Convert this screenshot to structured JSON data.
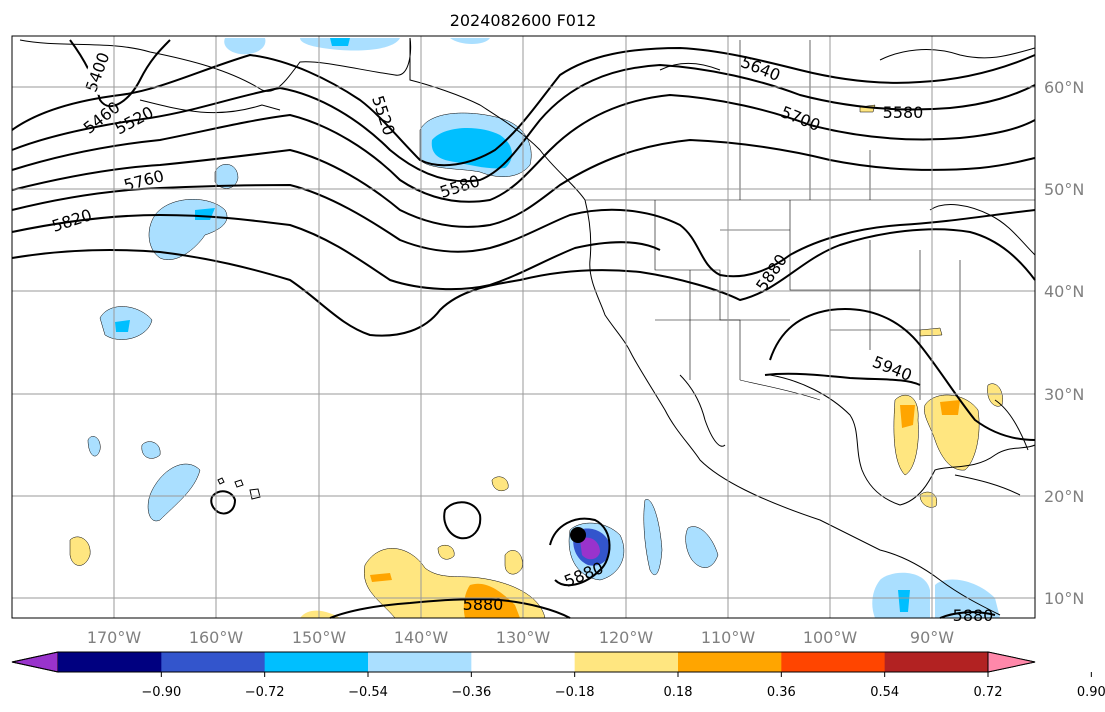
{
  "title": "2024082600 F012",
  "lon_labels": [
    "170°W",
    "160°W",
    "150°W",
    "140°W",
    "130°W",
    "120°W",
    "110°W",
    "100°W",
    "90°W"
  ],
  "lat_labels": [
    "60°N",
    "50°N",
    "40°N",
    "30°N",
    "20°N",
    "10°N"
  ],
  "contour_labels": [
    "5400",
    "5460",
    "5520",
    "5520",
    "5580",
    "5580",
    "5640",
    "5700",
    "5760",
    "5820",
    "5880",
    "5880",
    "5880",
    "5940",
    "5880"
  ],
  "colorbar": {
    "colors": [
      "#9933cc",
      "#000080",
      "#3355cc",
      "#00bfff",
      "#aadfff",
      "#ffffff",
      "#ffe680",
      "#ffa500",
      "#ff4500",
      "#b22222",
      "#ff88aa"
    ],
    "labels": [
      "−0.90",
      "−0.72",
      "−0.54",
      "−0.36",
      "−0.18",
      "0.18",
      "0.36",
      "0.54",
      "0.72",
      "0.90"
    ],
    "extend": "both"
  },
  "legend": "colorbar below map"
}
